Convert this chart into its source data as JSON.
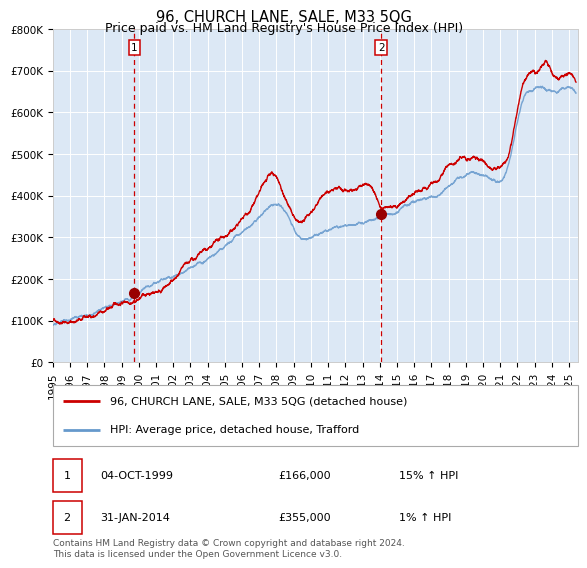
{
  "title": "96, CHURCH LANE, SALE, M33 5QG",
  "subtitle": "Price paid vs. HM Land Registry's House Price Index (HPI)",
  "ylim": [
    0,
    800000
  ],
  "xlim_start": 1995.0,
  "xlim_end": 2025.5,
  "yticks": [
    0,
    100000,
    200000,
    300000,
    400000,
    500000,
    600000,
    700000,
    800000
  ],
  "ytick_labels": [
    "£0",
    "£100K",
    "£200K",
    "£300K",
    "£400K",
    "£500K",
    "£600K",
    "£700K",
    "£800K"
  ],
  "xtick_years": [
    1995,
    1996,
    1997,
    1998,
    1999,
    2000,
    2001,
    2002,
    2003,
    2004,
    2005,
    2006,
    2007,
    2008,
    2009,
    2010,
    2011,
    2012,
    2013,
    2014,
    2015,
    2016,
    2017,
    2018,
    2019,
    2020,
    2021,
    2022,
    2023,
    2024,
    2025
  ],
  "red_line_color": "#cc0000",
  "blue_line_color": "#6699cc",
  "plot_bg_color": "#dce8f5",
  "grid_color": "#ffffff",
  "vline_color": "#cc0000",
  "sale1_x": 1999.75,
  "sale1_y": 166000,
  "sale2_x": 2014.08,
  "sale2_y": 355000,
  "sale1_label": "1",
  "sale2_label": "2",
  "legend_line1": "96, CHURCH LANE, SALE, M33 5QG (detached house)",
  "legend_line2": "HPI: Average price, detached house, Trafford",
  "table_row1": [
    "1",
    "04-OCT-1999",
    "£166,000",
    "15% ↑ HPI"
  ],
  "table_row2": [
    "2",
    "31-JAN-2014",
    "£355,000",
    "1% ↑ HPI"
  ],
  "footnote": "Contains HM Land Registry data © Crown copyright and database right 2024.\nThis data is licensed under the Open Government Licence v3.0.",
  "title_fontsize": 10.5,
  "subtitle_fontsize": 9,
  "tick_fontsize": 7.5,
  "legend_fontsize": 8,
  "table_fontsize": 8,
  "footnote_fontsize": 6.5
}
